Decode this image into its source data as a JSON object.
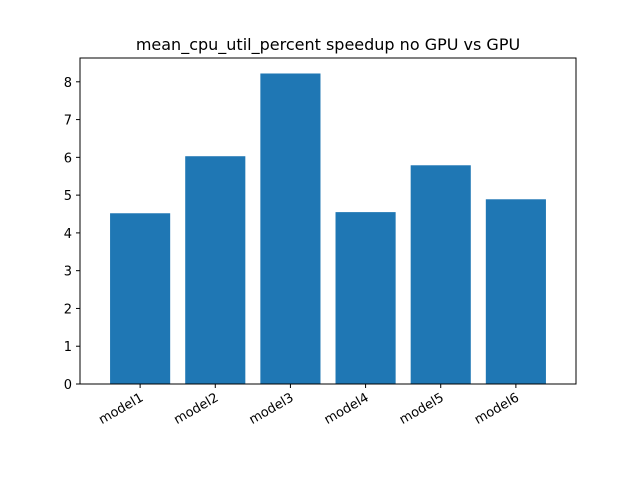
{
  "chart_data": {
    "type": "bar",
    "title": "mean_cpu_util_percent speedup no GPU vs GPU",
    "xlabel": "",
    "ylabel": "",
    "categories": [
      "model1",
      "model2",
      "model3",
      "model4",
      "model5",
      "model6"
    ],
    "values": [
      4.52,
      6.03,
      8.22,
      4.55,
      5.79,
      4.89
    ],
    "ylim": [
      0,
      8.63
    ],
    "yticks": [
      "0",
      "1",
      "2",
      "3",
      "4",
      "5",
      "6",
      "7",
      "8"
    ],
    "grid": false,
    "bar_color": "#1f77b4"
  }
}
